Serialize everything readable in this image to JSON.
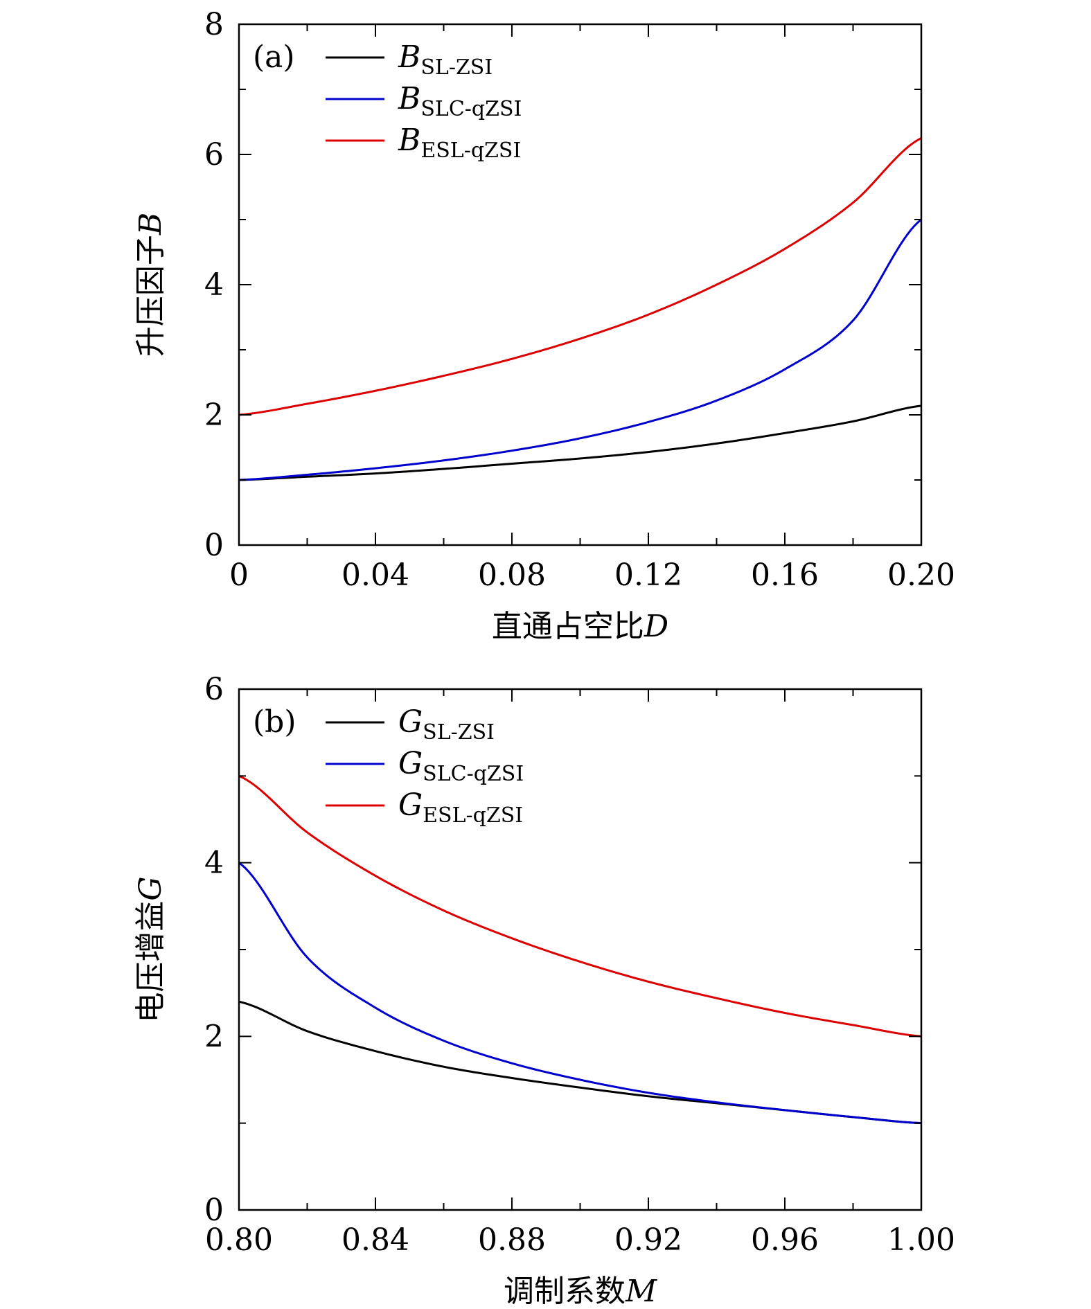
{
  "chart_data": [
    {
      "type": "line",
      "panel_label": "(a)",
      "xlabel": "直通占空比",
      "xlabel_var": "D",
      "ylabel": "升压因子",
      "ylabel_var": "B",
      "xlim": [
        0,
        0.2
      ],
      "ylim": [
        0,
        8
      ],
      "x_ticks": [
        0,
        0.04,
        0.08,
        0.12,
        0.16,
        0.2
      ],
      "x_tick_labels": [
        "0",
        "0.04",
        "0.08",
        "0.12",
        "0.16",
        "0.20"
      ],
      "y_ticks": [
        0,
        2,
        4,
        6,
        8
      ],
      "y_tick_labels": [
        "0",
        "2",
        "4",
        "6",
        "8"
      ],
      "legend_position": "top-left",
      "grid": false,
      "x": [
        0,
        0.02,
        0.04,
        0.06,
        0.08,
        0.1,
        0.12,
        0.14,
        0.16,
        0.18,
        0.2
      ],
      "series": [
        {
          "name_main": "B",
          "name_sub": "SL-ZSI",
          "color": "#000000",
          "values": [
            1.0,
            1.05,
            1.1,
            1.17,
            1.25,
            1.33,
            1.43,
            1.56,
            1.72,
            1.9,
            2.14
          ]
        },
        {
          "name_main": "B",
          "name_sub": "SLC-qZSI",
          "color": "#0000cc",
          "values": [
            1.0,
            1.08,
            1.18,
            1.3,
            1.45,
            1.64,
            1.89,
            2.22,
            2.7,
            3.45,
            5.0
          ]
        },
        {
          "name_main": "B",
          "name_sub": "ESL-qZSI",
          "color": "#dd0000",
          "values": [
            2.0,
            2.17,
            2.37,
            2.6,
            2.86,
            3.17,
            3.54,
            4.0,
            4.55,
            5.26,
            6.25
          ]
        }
      ]
    },
    {
      "type": "line",
      "panel_label": "(b)",
      "xlabel": "调制系数",
      "xlabel_var": "M",
      "ylabel": "电压增益",
      "ylabel_var": "G",
      "xlim": [
        0.8,
        1.0
      ],
      "ylim": [
        0,
        6
      ],
      "x_ticks": [
        0.8,
        0.84,
        0.88,
        0.92,
        0.96,
        1.0
      ],
      "x_tick_labels": [
        "0.80",
        "0.84",
        "0.88",
        "0.92",
        "0.96",
        "1.00"
      ],
      "y_ticks": [
        0,
        2,
        4,
        6
      ],
      "y_tick_labels": [
        "0",
        "2",
        "4",
        "6"
      ],
      "legend_position": "top-left",
      "grid": false,
      "x": [
        0.8,
        0.82,
        0.84,
        0.86,
        0.88,
        0.9,
        0.92,
        0.94,
        0.96,
        0.98,
        1.0
      ],
      "series": [
        {
          "name_main": "G",
          "name_sub": "SL-ZSI",
          "color": "#000000",
          "values": [
            2.4,
            2.06,
            1.83,
            1.65,
            1.52,
            1.41,
            1.31,
            1.23,
            1.15,
            1.07,
            1.0
          ]
        },
        {
          "name_main": "G",
          "name_sub": "SLC-qZSI",
          "color": "#0000cc",
          "values": [
            4.0,
            2.91,
            2.33,
            1.95,
            1.69,
            1.5,
            1.35,
            1.24,
            1.15,
            1.07,
            1.0
          ]
        },
        {
          "name_main": "G",
          "name_sub": "ESL-qZSI",
          "color": "#dd0000",
          "values": [
            5.0,
            4.35,
            3.85,
            3.45,
            3.13,
            2.86,
            2.63,
            2.44,
            2.27,
            2.13,
            2.0
          ]
        }
      ]
    }
  ]
}
